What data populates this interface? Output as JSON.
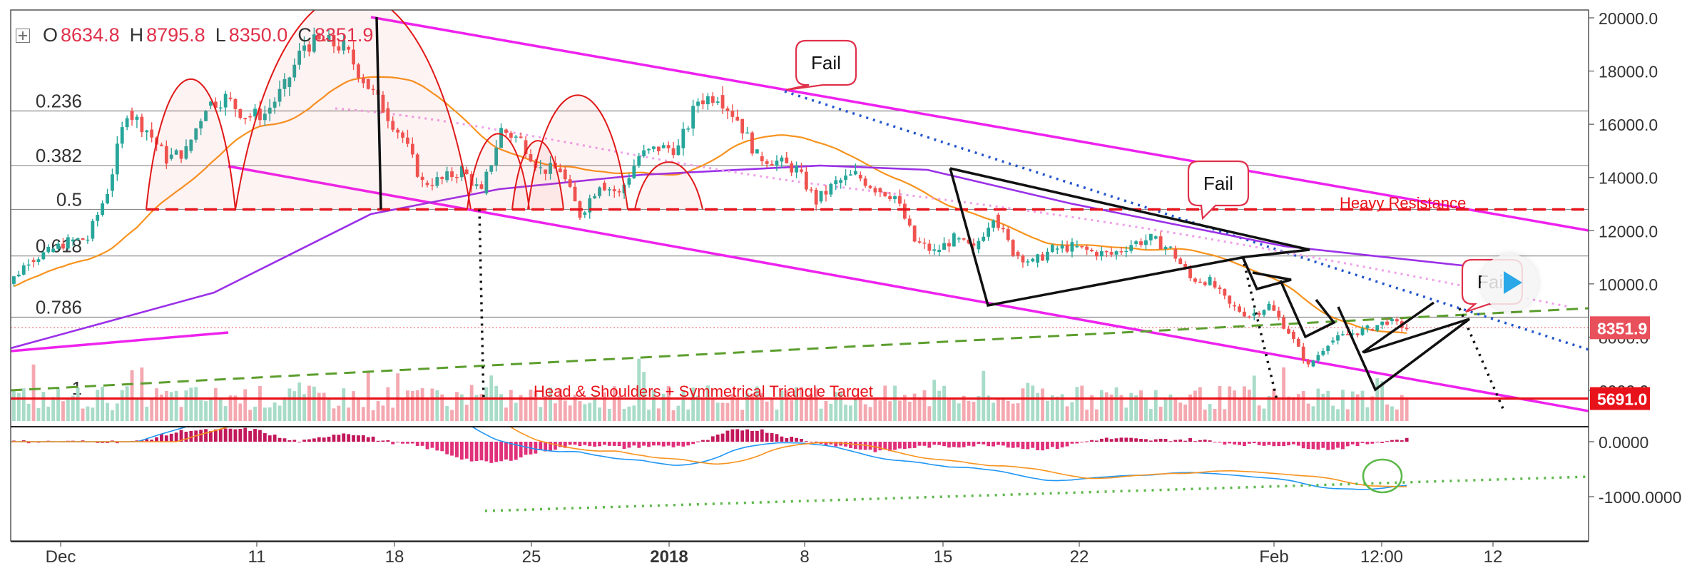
{
  "ohlc": {
    "open_label": "O",
    "open": "8634.8",
    "high_label": "H",
    "high": "8795.8",
    "low_label": "L",
    "low": "8350.0",
    "close_label": "C",
    "close": "8351.9"
  },
  "price_axis_ticks": [
    "20000.0",
    "18000.0",
    "16000.0",
    "14000.0",
    "12000.0",
    "10000.0",
    "8000.0",
    "6000.0"
  ],
  "price_labels": {
    "current": "8351.9",
    "target": "5691.0",
    "current_color": "#e8505b",
    "target_color": "#e8121a"
  },
  "macd_axis_ticks": [
    "0.0000",
    "-1000.0000"
  ],
  "time_axis": [
    "Dec",
    "11",
    "18",
    "25",
    "2018",
    "8",
    "15",
    "22",
    "Feb",
    "12:00",
    "12"
  ],
  "fib_levels": [
    {
      "label": "0.236",
      "value": 16500
    },
    {
      "label": "0.382",
      "value": 14450
    },
    {
      "label": "0.5",
      "value": 12800
    },
    {
      "label": "0.618",
      "value": 11050
    },
    {
      "label": "0.786",
      "value": 8750
    },
    {
      "label": "1",
      "value": 5700
    }
  ],
  "annotations": {
    "fail_1": "Fail",
    "fail_2": "Fail",
    "fail_3": "Fail",
    "heavy_resistance": "Heavy Resistance",
    "target": "Head & Shoulders + Symmetrical Triangle Target"
  },
  "colors": {
    "up": "#26a69a",
    "down": "#ef5350",
    "channel": "#ee22ee",
    "ma_orange": "#f7931e",
    "ma_purple": "#9b30e8",
    "accent_red": "#e8121a",
    "trend_blue": "#2255cc",
    "trend_green": "#5c9e2e"
  },
  "chart_data": {
    "type": "candlestick",
    "title": "",
    "ylim": [
      5000,
      20200
    ],
    "x": [
      "Dec 1",
      "Dec 2",
      "Dec 3",
      "Dec 4",
      "Dec 5",
      "Dec 6",
      "Dec 7",
      "Dec 8",
      "Dec 9",
      "Dec 10",
      "Dec 11",
      "Dec 12",
      "Dec 13",
      "Dec 14",
      "Dec 15",
      "Dec 16",
      "Dec 17",
      "Dec 18",
      "Dec 19",
      "Dec 20",
      "Dec 21",
      "Dec 22",
      "Dec 23",
      "Dec 24",
      "Dec 25",
      "Dec 26",
      "Dec 27",
      "Dec 28",
      "Dec 29",
      "Dec 30",
      "Dec 31",
      "Jan 1",
      "Jan 2",
      "Jan 3",
      "Jan 4",
      "Jan 5",
      "Jan 6",
      "Jan 7",
      "Jan 8",
      "Jan 9",
      "Jan 10",
      "Jan 11",
      "Jan 12",
      "Jan 13",
      "Jan 14",
      "Jan 15",
      "Jan 16",
      "Jan 17",
      "Jan 18",
      "Jan 19",
      "Jan 20",
      "Jan 21",
      "Jan 22",
      "Jan 23",
      "Jan 24",
      "Jan 25",
      "Jan 26",
      "Jan 27",
      "Jan 28",
      "Jan 29",
      "Jan 30",
      "Jan 31",
      "Feb 1",
      "Feb 2",
      "Feb 3",
      "Feb 4",
      "Feb 5",
      "Feb 6",
      "Feb 7",
      "Feb 8",
      "Feb 9",
      "Feb 10"
    ],
    "close": [
      10000,
      10900,
      11200,
      11600,
      11700,
      13500,
      16500,
      15800,
      14700,
      15000,
      16700,
      17000,
      16300,
      16400,
      17400,
      19000,
      19100,
      18900,
      17700,
      16600,
      15500,
      13800,
      13900,
      14300,
      13400,
      15800,
      15400,
      14300,
      14300,
      12600,
      13800,
      13400,
      14800,
      15100,
      15100,
      16900,
      17100,
      16200,
      14800,
      14600,
      14300,
      13100,
      13800,
      14100,
      13600,
      13300,
      11600,
      11200,
      11700,
      11300,
      12600,
      11200,
      10800,
      11300,
      11400,
      11200,
      11100,
      11500,
      11700,
      11300,
      10200,
      10100,
      9200,
      8800,
      9200,
      8200,
      6900,
      7800,
      8100,
      8300,
      8600,
      8350
    ],
    "volume_panel": "present",
    "macd": {
      "ylim": [
        -1400,
        400
      ],
      "histogram": "present",
      "lines": [
        "macd",
        "signal"
      ]
    },
    "legend": "none",
    "grid": false
  }
}
